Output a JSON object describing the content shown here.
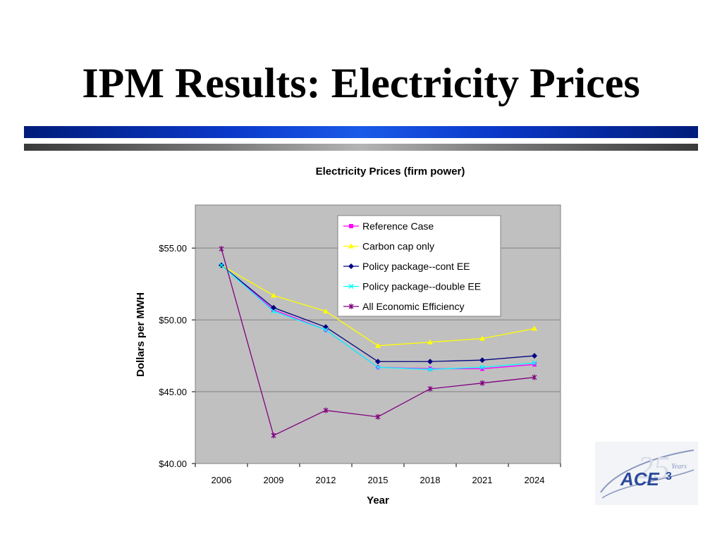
{
  "slide": {
    "title": "IPM Results: Electricity Prices"
  },
  "chart_data": {
    "type": "line",
    "title": "Electricity Prices (firm power)",
    "xlabel": "Year",
    "ylabel": "Dollars per MWH",
    "categories": [
      "2006",
      "2009",
      "2012",
      "2015",
      "2018",
      "2021",
      "2024"
    ],
    "ylim": [
      40,
      58
    ],
    "yticks": [
      40,
      45,
      50,
      55
    ],
    "ytick_labels": [
      "$40.00",
      "$45.00",
      "$50.00",
      "$55.00"
    ],
    "grid": true,
    "legend_position": "top-right",
    "plot_background": "#c0c0c0",
    "series": [
      {
        "name": "Reference Case",
        "color": "#ff00ff",
        "marker": "square",
        "values": [
          53.8,
          50.7,
          49.3,
          46.7,
          46.6,
          46.6,
          46.9
        ]
      },
      {
        "name": "Carbon cap only",
        "color": "#ffff00",
        "marker": "triangle",
        "values": [
          53.8,
          51.7,
          50.6,
          48.2,
          48.45,
          48.7,
          49.4
        ]
      },
      {
        "name": "Policy package--cont EE",
        "color": "#000080",
        "marker": "diamond",
        "values": [
          53.8,
          50.85,
          49.5,
          47.1,
          47.1,
          47.2,
          47.5
        ]
      },
      {
        "name": "Policy package--double EE",
        "color": "#00ffff",
        "marker": "x",
        "values": [
          53.8,
          50.6,
          49.3,
          46.7,
          46.55,
          46.7,
          47.0
        ]
      },
      {
        "name": "All Economic Efficiency",
        "color": "#800080",
        "marker": "star",
        "values": [
          54.95,
          41.95,
          43.7,
          43.25,
          45.2,
          45.6,
          46.0
        ]
      }
    ]
  },
  "logo": {
    "text_main": "ACE",
    "superscript": "3",
    "anniversary": "25",
    "anniversary_word": "Years"
  }
}
